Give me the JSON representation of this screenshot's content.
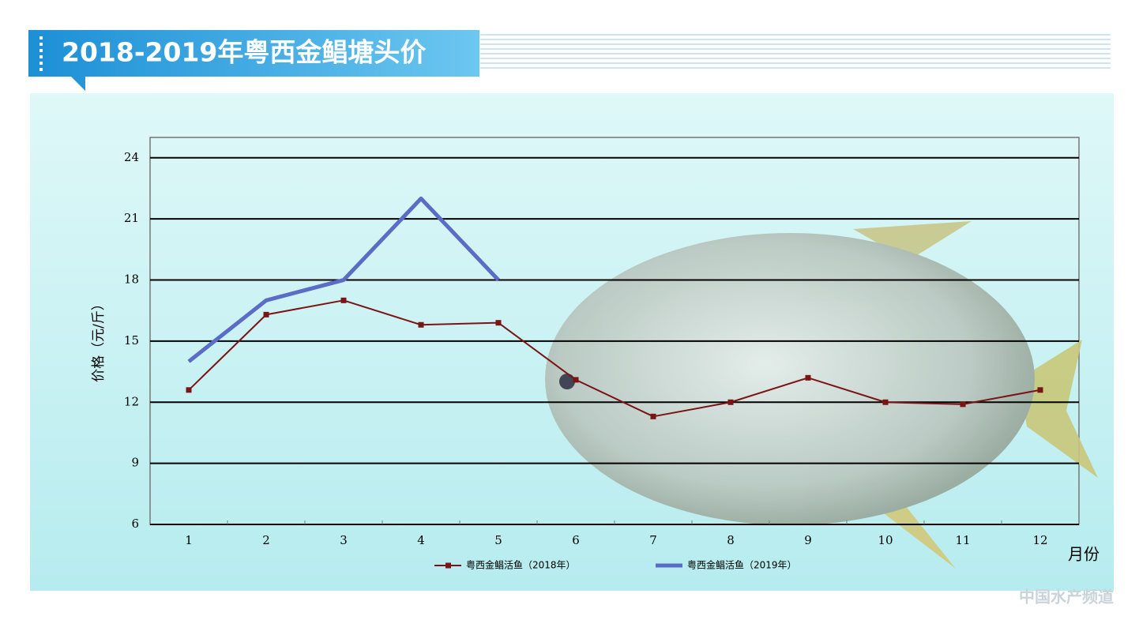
{
  "chart_data": {
    "type": "line",
    "title": "2018-2019年粤西金鲳塘头价",
    "y_label": "价格（元/斤）",
    "x_label": "月份",
    "categories": [
      "1",
      "2",
      "3",
      "4",
      "5",
      "6",
      "7",
      "8",
      "9",
      "10",
      "11",
      "12"
    ],
    "series": [
      {
        "name": "粤西金鲳活鱼（2018年）",
        "color": "#7b1414",
        "marker": "square",
        "values": [
          12.6,
          16.3,
          17.0,
          15.8,
          15.9,
          13.1,
          11.3,
          12.0,
          13.2,
          12.0,
          11.9,
          12.6
        ]
      },
      {
        "name": "粤西金鲳活鱼（2019年）",
        "color": "#5a6cc6",
        "marker": "none",
        "values": [
          14,
          17,
          18,
          22,
          18,
          null,
          null,
          null,
          null,
          null,
          null,
          null
        ]
      }
    ],
    "ylim": [
      6,
      25
    ],
    "yticks": [
      6,
      9,
      12,
      15,
      18,
      21,
      24
    ],
    "grid": true,
    "legend": "bottom",
    "watermark": "中国水产频道"
  }
}
